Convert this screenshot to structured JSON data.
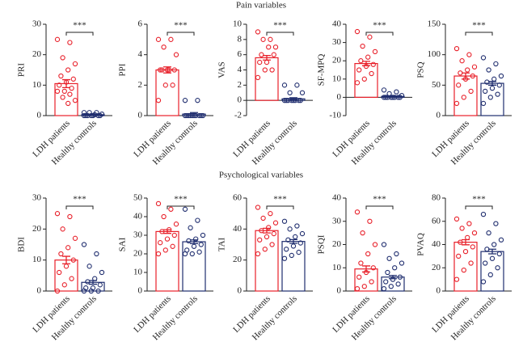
{
  "headings": [
    "Pain variables",
    "Psychological variables"
  ],
  "chart_data": [
    {
      "type": "bar",
      "ylabel": "PRI",
      "categories": [
        "LDH patients",
        "Healthy controls"
      ],
      "values": [
        10.5,
        0.3
      ],
      "errors": [
        1.3,
        0.2
      ],
      "colors": [
        "#e8202a",
        "#1f2d6e"
      ],
      "annotation": "***",
      "ylim": [
        0,
        30
      ],
      "yticks": [
        0,
        10,
        20,
        30
      ],
      "points": [
        [
          25,
          24,
          19,
          17,
          15,
          13,
          12,
          11,
          10,
          9,
          8,
          8,
          7,
          6,
          5,
          4
        ],
        [
          1,
          1,
          1,
          0.5,
          0.3,
          0,
          0,
          0,
          0,
          0,
          0,
          0
        ]
      ]
    },
    {
      "type": "bar",
      "ylabel": "PPI",
      "categories": [
        "LDH patients",
        "Healthy controls"
      ],
      "values": [
        3.0,
        0.1
      ],
      "errors": [
        0.2,
        0.1
      ],
      "colors": [
        "#e8202a",
        "#1f2d6e"
      ],
      "annotation": "***",
      "ylim": [
        0,
        6
      ],
      "yticks": [
        0,
        2,
        4,
        6
      ],
      "points": [
        [
          5,
          5,
          4.5,
          4,
          3,
          3,
          3,
          3,
          3,
          2,
          2,
          1
        ],
        [
          1,
          1,
          0,
          0,
          0,
          0,
          0,
          0,
          0,
          0,
          0,
          0
        ]
      ]
    },
    {
      "type": "bar",
      "ylabel": "VAS",
      "categories": [
        "LDH patients",
        "Healthy controls"
      ],
      "values": [
        5.6,
        0.2
      ],
      "errors": [
        0.3,
        0.15
      ],
      "colors": [
        "#e8202a",
        "#1f2d6e"
      ],
      "annotation": "***",
      "ylim": [
        -2,
        10
      ],
      "yticks": [
        -2,
        0,
        2,
        4,
        6,
        8,
        10
      ],
      "points": [
        [
          9,
          8,
          8,
          7,
          7,
          6,
          6,
          5,
          5,
          4,
          4,
          3
        ],
        [
          2,
          2,
          1,
          1,
          0,
          0,
          0,
          0,
          0,
          0,
          0,
          0
        ]
      ]
    },
    {
      "type": "bar",
      "ylabel": "SF-MPQ",
      "categories": [
        "LDH patients",
        "Healthy controls"
      ],
      "values": [
        18.5,
        0.5
      ],
      "errors": [
        1.2,
        0.3
      ],
      "colors": [
        "#e8202a",
        "#1f2d6e"
      ],
      "annotation": "***",
      "ylim": [
        -10,
        40
      ],
      "yticks": [
        -10,
        0,
        10,
        20,
        30,
        40
      ],
      "points": [
        [
          36,
          33,
          28,
          25,
          22,
          20,
          18,
          17,
          15,
          13,
          10,
          8
        ],
        [
          4,
          3,
          2,
          1,
          0,
          0,
          0,
          0,
          0,
          0,
          0,
          0
        ]
      ]
    },
    {
      "type": "bar",
      "ylabel": "PSQ",
      "categories": [
        "LDH patients",
        "Healthy controls"
      ],
      "values": [
        65,
        53
      ],
      "errors": [
        5,
        3
      ],
      "colors": [
        "#e8202a",
        "#1f2d6e"
      ],
      "annotation": "***",
      "ylim": [
        0,
        150
      ],
      "yticks": [
        0,
        50,
        100,
        150
      ],
      "points": [
        [
          110,
          100,
          90,
          80,
          75,
          70,
          65,
          60,
          50,
          40,
          30,
          20
        ],
        [
          95,
          85,
          75,
          65,
          60,
          55,
          50,
          45,
          40,
          35,
          30,
          20
        ]
      ]
    },
    {
      "type": "bar",
      "ylabel": "BDI",
      "categories": [
        "LDH patients",
        "Healthy controls"
      ],
      "values": [
        10,
        2.8
      ],
      "errors": [
        1.2,
        0.6
      ],
      "colors": [
        "#e8202a",
        "#1f2d6e"
      ],
      "annotation": "***",
      "ylim": [
        0,
        30
      ],
      "yticks": [
        0,
        10,
        20,
        30
      ],
      "points": [
        [
          25,
          24,
          20,
          17,
          14,
          12,
          10,
          8,
          6,
          4,
          2,
          0
        ],
        [
          15,
          12,
          8,
          6,
          4,
          3,
          2,
          1,
          1,
          0,
          0,
          0
        ]
      ]
    },
    {
      "type": "bar",
      "ylabel": "SAI",
      "categories": [
        "LDH patients",
        "Healthy controls"
      ],
      "values": [
        32,
        26.5
      ],
      "errors": [
        1,
        1
      ],
      "colors": [
        "#e8202a",
        "#1f2d6e"
      ],
      "annotation": "***",
      "ylim": [
        0,
        50
      ],
      "yticks": [
        0,
        10,
        20,
        30,
        40,
        50
      ],
      "points": [
        [
          47,
          44,
          40,
          36,
          33,
          32,
          30,
          28,
          26,
          24,
          22,
          20
        ],
        [
          44,
          38,
          34,
          30,
          28,
          27,
          25,
          24,
          22,
          21,
          20,
          20
        ]
      ]
    },
    {
      "type": "bar",
      "ylabel": "TAI",
      "categories": [
        "LDH patients",
        "Healthy controls"
      ],
      "values": [
        39,
        32
      ],
      "errors": [
        1.5,
        1.2
      ],
      "colors": [
        "#e8202a",
        "#1f2d6e"
      ],
      "annotation": "***",
      "ylim": [
        0,
        60
      ],
      "yticks": [
        0,
        20,
        40,
        60
      ],
      "points": [
        [
          54,
          50,
          47,
          44,
          41,
          39,
          37,
          35,
          33,
          30,
          27,
          24
        ],
        [
          45,
          42,
          40,
          37,
          35,
          33,
          31,
          29,
          27,
          25,
          23,
          21
        ]
      ]
    },
    {
      "type": "bar",
      "ylabel": "PSQI",
      "categories": [
        "LDH patients",
        "Healthy controls"
      ],
      "values": [
        9.5,
        6
      ],
      "errors": [
        1.3,
        0.7
      ],
      "colors": [
        "#e8202a",
        "#1f2d6e"
      ],
      "annotation": "***",
      "ylim": [
        0,
        40
      ],
      "yticks": [
        0,
        10,
        20,
        30,
        40
      ],
      "points": [
        [
          34,
          30,
          25,
          20,
          16,
          12,
          10,
          8,
          6,
          4,
          2,
          1
        ],
        [
          20,
          16,
          14,
          12,
          10,
          8,
          6,
          5,
          4,
          3,
          2,
          1
        ]
      ]
    },
    {
      "type": "bar",
      "ylabel": "PVAQ",
      "categories": [
        "LDH patients",
        "Healthy controls"
      ],
      "values": [
        42,
        34
      ],
      "errors": [
        2.2,
        2
      ],
      "colors": [
        "#e8202a",
        "#1f2d6e"
      ],
      "annotation": "***",
      "ylim": [
        0,
        80
      ],
      "yticks": [
        0,
        20,
        40,
        60,
        80
      ],
      "points": [
        [
          62,
          58,
          54,
          50,
          46,
          42,
          38,
          34,
          30,
          24,
          18,
          10
        ],
        [
          66,
          58,
          50,
          44,
          40,
          36,
          32,
          28,
          24,
          20,
          14,
          8
        ]
      ]
    }
  ]
}
